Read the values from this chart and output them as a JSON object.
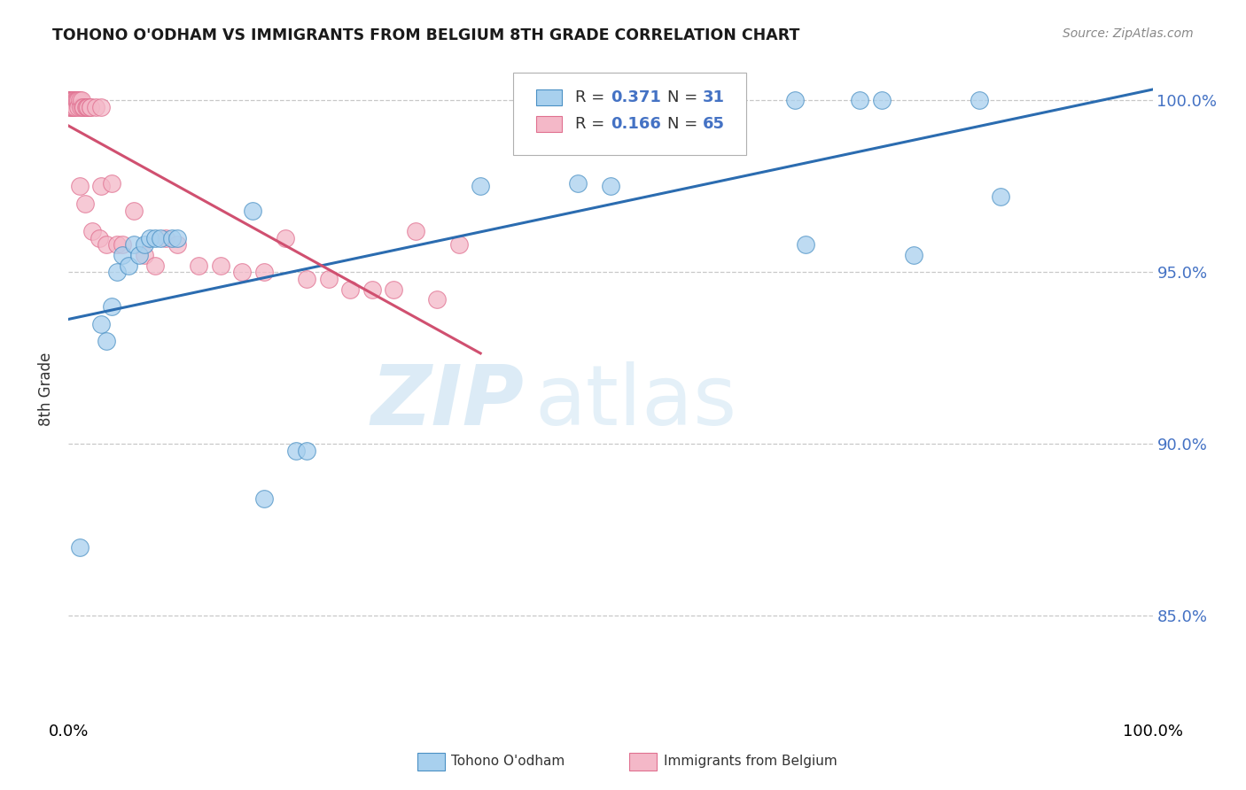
{
  "title": "TOHONO O'ODHAM VS IMMIGRANTS FROM BELGIUM 8TH GRADE CORRELATION CHART",
  "source": "Source: ZipAtlas.com",
  "ylabel": "8th Grade",
  "xlim": [
    0,
    1
  ],
  "ylim": [
    0.82,
    1.012
  ],
  "yticks": [
    0.85,
    0.9,
    0.95,
    1.0
  ],
  "ytick_labels": [
    "85.0%",
    "90.0%",
    "95.0%",
    "100.0%"
  ],
  "xtick_labels": [
    "0.0%",
    "100.0%"
  ],
  "xtick_positions": [
    0.0,
    1.0
  ],
  "blue_color": "#a8d0ee",
  "pink_color": "#f4b8c8",
  "blue_edge_color": "#4a90c4",
  "pink_edge_color": "#e07090",
  "blue_line_color": "#2b6cb0",
  "pink_line_color": "#d05070",
  "legend_R_blue": "0.371",
  "legend_N_blue": "31",
  "legend_R_pink": "0.166",
  "legend_N_pink": "65",
  "watermark_zip": "ZIP",
  "watermark_atlas": "atlas",
  "background_color": "#ffffff",
  "grid_color": "#c8c8c8",
  "blue_scatter_x": [
    0.01,
    0.03,
    0.035,
    0.04,
    0.045,
    0.05,
    0.055,
    0.06,
    0.065,
    0.07,
    0.075,
    0.08,
    0.085,
    0.095,
    0.1,
    0.17,
    0.18,
    0.21,
    0.22,
    0.38,
    0.47,
    0.5,
    0.57,
    0.6,
    0.67,
    0.68,
    0.73,
    0.75,
    0.78,
    0.84,
    0.86
  ],
  "blue_scatter_y": [
    0.87,
    0.935,
    0.93,
    0.94,
    0.95,
    0.955,
    0.952,
    0.958,
    0.955,
    0.958,
    0.96,
    0.96,
    0.96,
    0.96,
    0.96,
    0.968,
    0.884,
    0.898,
    0.898,
    0.975,
    0.976,
    0.975,
    1.0,
    1.0,
    1.0,
    0.958,
    1.0,
    1.0,
    0.955,
    1.0,
    0.972
  ],
  "pink_scatter_x": [
    0.0,
    0.0,
    0.0,
    0.0,
    0.0,
    0.0,
    0.002,
    0.002,
    0.002,
    0.002,
    0.002,
    0.003,
    0.003,
    0.003,
    0.004,
    0.004,
    0.004,
    0.005,
    0.005,
    0.005,
    0.006,
    0.006,
    0.007,
    0.008,
    0.009,
    0.009,
    0.01,
    0.01,
    0.011,
    0.012,
    0.013,
    0.014,
    0.015,
    0.016,
    0.017,
    0.018,
    0.02,
    0.02,
    0.022,
    0.025,
    0.028,
    0.03,
    0.03,
    0.035,
    0.04,
    0.045,
    0.05,
    0.06,
    0.07,
    0.08,
    0.09,
    0.1,
    0.12,
    0.14,
    0.16,
    0.18,
    0.2,
    0.22,
    0.24,
    0.26,
    0.28,
    0.3,
    0.32,
    0.34,
    0.36
  ],
  "pink_scatter_y": [
    1.0,
    1.0,
    1.0,
    1.0,
    1.0,
    0.998,
    1.0,
    1.0,
    1.0,
    1.0,
    0.998,
    1.0,
    1.0,
    0.998,
    1.0,
    1.0,
    0.998,
    1.0,
    1.0,
    0.998,
    1.0,
    0.998,
    1.0,
    1.0,
    1.0,
    0.998,
    1.0,
    0.975,
    0.998,
    1.0,
    0.998,
    0.998,
    0.97,
    0.998,
    0.998,
    0.998,
    0.998,
    0.998,
    0.962,
    0.998,
    0.96,
    0.975,
    0.998,
    0.958,
    0.976,
    0.958,
    0.958,
    0.968,
    0.955,
    0.952,
    0.96,
    0.958,
    0.952,
    0.952,
    0.95,
    0.95,
    0.96,
    0.948,
    0.948,
    0.945,
    0.945,
    0.945,
    0.962,
    0.942,
    0.958
  ]
}
